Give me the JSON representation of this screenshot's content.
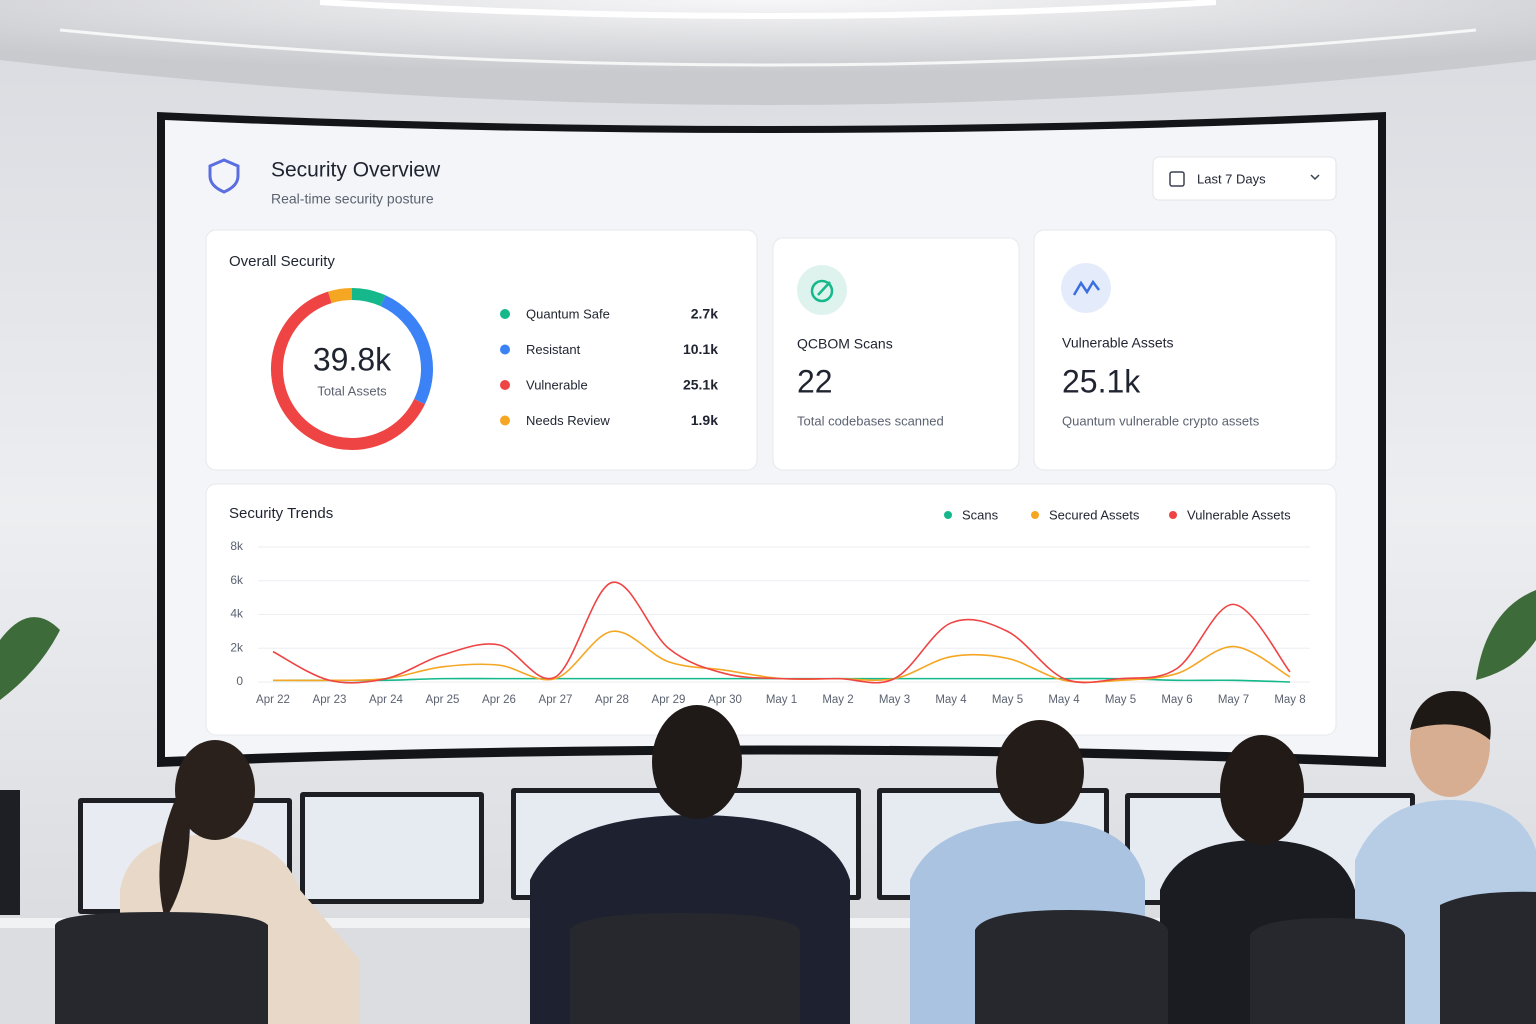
{
  "header": {
    "title": "Security Overview",
    "subtitle": "Real-time security posture"
  },
  "date_filter": "Last 7 Days",
  "cards": [
    {
      "title": "QCBOM Scans",
      "value": "22",
      "caption": "Total codebases scanned"
    },
    {
      "title": "Vulnerable Assets",
      "value": "25.1k",
      "caption": "Quantum vulnerable crypto assets"
    }
  ],
  "chart_data": [
    {
      "type": "donut",
      "title": "Overall Security",
      "center_label": "39.8k",
      "center_sublabel": "Total Assets",
      "categories": [
        "Quantum Safe",
        "Resistant",
        "Vulnerable",
        "Needs Review"
      ],
      "values": [
        2700,
        10100,
        25100,
        1900
      ],
      "value_labels": [
        "2.7k",
        "10.1k",
        "25.1k",
        "1.9k"
      ],
      "colors": [
        "#14b88a",
        "#3b82f6",
        "#ef4444",
        "#f5a623"
      ]
    },
    {
      "type": "line",
      "title": "Security Trends",
      "categories": [
        "Apr 22",
        "Apr 23",
        "Apr 24",
        "Apr 25",
        "Apr 26",
        "Apr 27",
        "Apr 28",
        "Apr 29",
        "Apr 30",
        "May 1",
        "May 2",
        "May 3",
        "May 4",
        "May 5",
        "May 4",
        "May 5",
        "May 6",
        "May 7",
        "May 8"
      ],
      "series": [
        {
          "name": "Scans",
          "color": "#14b88a",
          "values": [
            100,
            100,
            100,
            200,
            200,
            200,
            200,
            200,
            200,
            200,
            200,
            200,
            200,
            200,
            200,
            200,
            100,
            100,
            0
          ]
        },
        {
          "name": "Secured Assets",
          "color": "#f5a623",
          "values": [
            100,
            100,
            200,
            900,
            1000,
            200,
            3000,
            1200,
            700,
            200,
            200,
            200,
            1500,
            1400,
            100,
            100,
            500,
            2100,
            300
          ]
        },
        {
          "name": "Vulnerable Assets",
          "color": "#ef4444",
          "values": [
            1800,
            100,
            200,
            1600,
            2200,
            300,
            5900,
            2000,
            500,
            200,
            200,
            200,
            3500,
            3000,
            200,
            200,
            800,
            4600,
            600
          ]
        }
      ],
      "ylim": [
        0,
        8000
      ],
      "yticks": [
        0,
        {
          "value": 2000,
          "label": "2k"
        },
        {
          "value": 4000,
          "label": "4k"
        },
        {
          "value": 6000,
          "label": "6k"
        },
        {
          "value": 8000,
          "label": "8k"
        }
      ],
      "grid": true
    }
  ]
}
